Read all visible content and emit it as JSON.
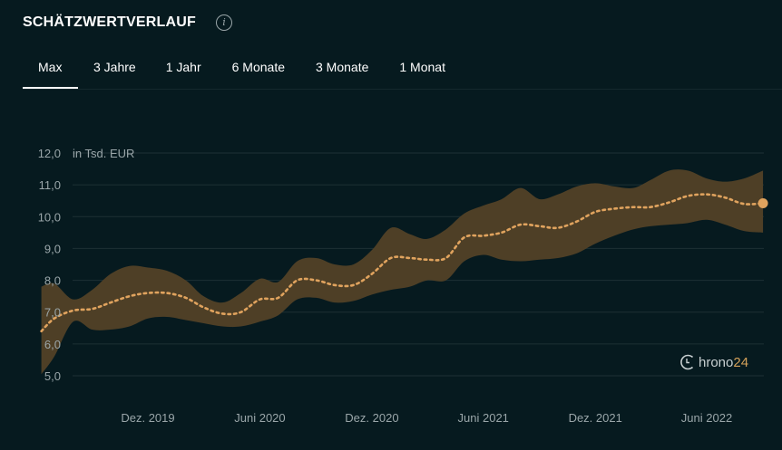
{
  "header": {
    "title": "SCHÄTZWERTVERLAUF",
    "info_icon": "info-icon"
  },
  "tabs": [
    {
      "label": "Max",
      "active": true
    },
    {
      "label": "3 Jahre",
      "active": false
    },
    {
      "label": "1 Jahr",
      "active": false
    },
    {
      "label": "6 Monate",
      "active": false
    },
    {
      "label": "3 Monate",
      "active": false
    },
    {
      "label": "1 Monat",
      "active": false
    }
  ],
  "watermark": {
    "text_pre": "hrono",
    "text_post": "24",
    "icon": "chrono24-clock-icon"
  },
  "colors": {
    "background": "#061a1f",
    "band_fill": "#4e3f26",
    "line": "#e0a35e",
    "grid": "#1d3034",
    "axis_text": "#9aa6a9"
  },
  "chart_data": {
    "type": "line",
    "unit_label": "in Tsd. EUR",
    "y_ticks": [
      "12,0",
      "11,0",
      "10,0",
      "9,0",
      "8,0",
      "7,0",
      "6,0",
      "5,0"
    ],
    "ylim": [
      5.0,
      12.0
    ],
    "x_ticks": [
      "Dez. 2019",
      "Juni 2020",
      "Dez. 2020",
      "Juni 2021",
      "Dez. 2021",
      "Juni 2022"
    ],
    "x_tick_dates": [
      "2019-12-01",
      "2020-06-01",
      "2020-12-01",
      "2021-06-01",
      "2021-12-01",
      "2022-06-01"
    ],
    "x": [
      "2019-06-10",
      "2019-07-01",
      "2019-08-01",
      "2019-09-01",
      "2019-10-01",
      "2019-11-01",
      "2019-12-01",
      "2020-01-01",
      "2020-02-01",
      "2020-03-01",
      "2020-04-01",
      "2020-05-01",
      "2020-06-01",
      "2020-07-01",
      "2020-08-01",
      "2020-09-01",
      "2020-10-01",
      "2020-11-01",
      "2020-12-01",
      "2021-01-01",
      "2021-02-01",
      "2021-03-01",
      "2021-04-01",
      "2021-05-01",
      "2021-06-01",
      "2021-07-01",
      "2021-08-01",
      "2021-09-01",
      "2021-10-01",
      "2021-11-01",
      "2021-12-01",
      "2022-01-01",
      "2022-02-01",
      "2022-03-01",
      "2022-04-01",
      "2022-05-01",
      "2022-06-01",
      "2022-07-01",
      "2022-08-01",
      "2022-09-01"
    ],
    "series": [
      {
        "values": [
          6.4,
          6.8,
          7.05,
          7.1,
          7.3,
          7.5,
          7.6,
          7.6,
          7.45,
          7.15,
          6.95,
          7.0,
          7.4,
          7.45,
          8.0,
          8.0,
          7.85,
          7.85,
          8.2,
          8.7,
          8.7,
          8.65,
          8.7,
          9.35,
          9.4,
          9.5,
          9.75,
          9.7,
          9.65,
          9.85,
          10.15,
          10.25,
          10.3,
          10.3,
          10.45,
          10.65,
          10.7,
          10.6,
          10.4,
          10.42
        ]
      }
    ],
    "band_upper": [
      7.8,
      7.9,
      7.4,
      7.7,
      8.2,
      8.45,
      8.4,
      8.3,
      8.0,
      7.5,
      7.3,
      7.6,
      8.05,
      7.95,
      8.6,
      8.7,
      8.5,
      8.5,
      8.95,
      9.65,
      9.45,
      9.3,
      9.6,
      10.1,
      10.35,
      10.55,
      10.9,
      10.55,
      10.7,
      10.95,
      11.05,
      10.95,
      10.9,
      11.15,
      11.45,
      11.45,
      11.2,
      11.1,
      11.2,
      11.45
    ],
    "band_lower": [
      5.05,
      5.6,
      6.7,
      6.45,
      6.45,
      6.55,
      6.8,
      6.85,
      6.75,
      6.65,
      6.55,
      6.55,
      6.7,
      6.9,
      7.4,
      7.45,
      7.3,
      7.35,
      7.55,
      7.7,
      7.8,
      8.0,
      8.0,
      8.6,
      8.8,
      8.65,
      8.6,
      8.65,
      8.7,
      8.85,
      9.15,
      9.4,
      9.6,
      9.7,
      9.75,
      9.8,
      9.9,
      9.75,
      9.55,
      9.5
    ],
    "last_point_marker": true,
    "grid": true,
    "legend": "none"
  }
}
